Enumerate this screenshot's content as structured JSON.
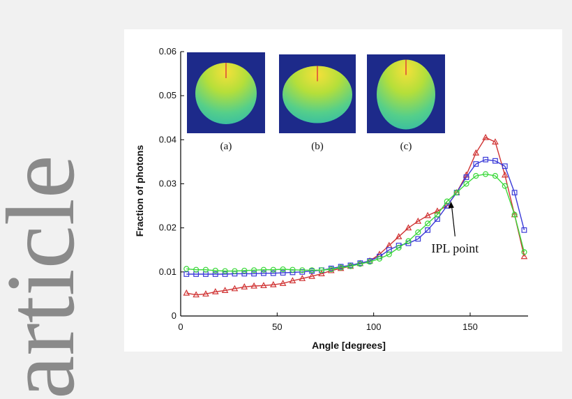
{
  "background_text": {
    "word": "article"
  },
  "chart_data": {
    "type": "line",
    "xlabel": "Angle [degrees]",
    "ylabel": "Fraction of photons",
    "xlim": [
      0,
      180
    ],
    "ylim": [
      0,
      0.06
    ],
    "xticks": [
      0,
      50,
      100,
      150
    ],
    "yticks": [
      0,
      0.01,
      0.02,
      0.03,
      0.04,
      0.05,
      0.06
    ],
    "ytick_labels": [
      "0",
      "0.01",
      "0.02",
      "0.03",
      "0.04",
      "0.05",
      "0.06"
    ],
    "grid": false,
    "x": [
      3,
      8,
      13,
      18,
      23,
      28,
      33,
      38,
      43,
      48,
      53,
      58,
      63,
      68,
      73,
      78,
      83,
      88,
      93,
      98,
      103,
      108,
      113,
      118,
      123,
      128,
      133,
      138,
      143,
      148,
      153,
      158,
      163,
      168,
      173,
      178
    ],
    "series": [
      {
        "color": "#d03434",
        "marker": "triangle",
        "values": [
          0.0052,
          0.0048,
          0.005,
          0.0055,
          0.0058,
          0.0062,
          0.0066,
          0.0068,
          0.0069,
          0.0071,
          0.0074,
          0.008,
          0.0085,
          0.009,
          0.0096,
          0.0103,
          0.0108,
          0.0113,
          0.0119,
          0.0125,
          0.014,
          0.016,
          0.018,
          0.02,
          0.0215,
          0.0228,
          0.0238,
          0.025,
          0.028,
          0.032,
          0.037,
          0.0405,
          0.0395,
          0.032,
          0.023,
          0.0135
        ]
      },
      {
        "color": "#3a3ad8",
        "marker": "square",
        "values": [
          0.0095,
          0.0095,
          0.0095,
          0.0095,
          0.0095,
          0.0096,
          0.0096,
          0.0096,
          0.0097,
          0.0097,
          0.0098,
          0.0099,
          0.01,
          0.0102,
          0.0104,
          0.0108,
          0.0112,
          0.0115,
          0.012,
          0.0125,
          0.0135,
          0.015,
          0.016,
          0.0165,
          0.0175,
          0.0195,
          0.022,
          0.025,
          0.028,
          0.0315,
          0.0345,
          0.0355,
          0.0352,
          0.034,
          0.028,
          0.0195
        ]
      },
      {
        "color": "#39d839",
        "marker": "circle",
        "values": [
          0.0107,
          0.0105,
          0.0105,
          0.0103,
          0.0102,
          0.0102,
          0.0103,
          0.0104,
          0.0105,
          0.0105,
          0.0106,
          0.0105,
          0.0104,
          0.0104,
          0.0104,
          0.0106,
          0.011,
          0.0113,
          0.0118,
          0.0123,
          0.013,
          0.014,
          0.0155,
          0.017,
          0.019,
          0.021,
          0.023,
          0.026,
          0.028,
          0.03,
          0.0318,
          0.0322,
          0.0318,
          0.0295,
          0.023,
          0.0145
        ]
      }
    ],
    "annotations": [
      {
        "text": "IPL point",
        "x": 140,
        "y": 0.026
      }
    ],
    "insets": [
      {
        "label": "(a)",
        "shape": "circle"
      },
      {
        "label": "(b)",
        "shape": "wide-ellipse"
      },
      {
        "label": "(c)",
        "shape": "tall-ellipse"
      }
    ]
  }
}
